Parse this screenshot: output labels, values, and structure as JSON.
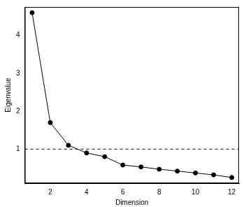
{
  "chart_data": {
    "type": "line",
    "x_label": "Dimension",
    "y_label": "Eigenvalue",
    "x": [
      1,
      2,
      3,
      4,
      5,
      6,
      7,
      8,
      9,
      10,
      11,
      12
    ],
    "values": [
      4.6,
      1.7,
      1.1,
      0.9,
      0.8,
      0.58,
      0.53,
      0.47,
      0.42,
      0.37,
      0.32,
      0.25
    ],
    "color": "#000000",
    "marker": "circle",
    "line_style": "solid",
    "reference_line": 1,
    "xlim": [
      0.6,
      12.4
    ],
    "xticks": [
      2,
      4,
      6,
      8,
      10,
      12
    ],
    "ylim": [
      0.1,
      4.75
    ],
    "yticks": [
      1,
      2,
      3,
      4
    ],
    "grid": false
  }
}
